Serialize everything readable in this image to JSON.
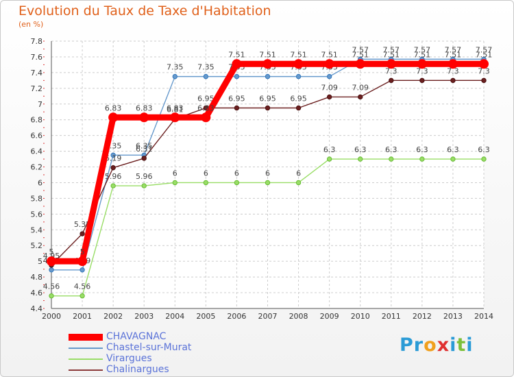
{
  "header": {
    "title": "Evolution du Taux de Taxe d'Habitation",
    "unit": "(en %)"
  },
  "brand": {
    "letters": [
      "P",
      "r",
      "o",
      "x",
      "i",
      "t",
      "i"
    ],
    "colors": [
      "#2a9bd6",
      "#2a9bd6",
      "#f0a01e",
      "#e03030",
      "#2a9bd6",
      "#7cc03a",
      "#2a9bd6"
    ]
  },
  "colors": {
    "CHAVAGNAC": "#ff0000",
    "Chastel-sur-Murat": "#6699cc",
    "Virargues": "#99dd66",
    "Chalinargues": "#8b3a3a"
  },
  "chart_data": {
    "type": "line",
    "title": "Evolution du Taux de Taxe d'Habitation",
    "ylabel": "(en %)",
    "xlabel": "",
    "ylim": [
      4.4,
      7.8
    ],
    "yticks": [
      "4.4",
      "4.6",
      "4.8",
      "5",
      "5.2",
      "5.4",
      "5.6",
      "5.8",
      "6",
      "6.2",
      "6.4",
      "6.6",
      "6.8",
      "7",
      "7.2",
      "7.4",
      "7.6",
      "7.8"
    ],
    "x": [
      "2000",
      "2001",
      "2002",
      "2003",
      "2004",
      "2005",
      "2006",
      "2007",
      "2008",
      "2009",
      "2010",
      "2011",
      "2012",
      "2013",
      "2014"
    ],
    "grid": true,
    "legend": "bottom-left",
    "series": [
      {
        "name": "Chastel-sur-Murat",
        "color": "#6699cc",
        "values": [
          4.89,
          4.89,
          6.35,
          6.35,
          7.35,
          7.35,
          7.35,
          7.35,
          7.35,
          7.35,
          7.57,
          7.57,
          7.57,
          7.57,
          7.57
        ]
      },
      {
        "name": "Virargues",
        "color": "#99dd66",
        "values": [
          4.56,
          4.56,
          5.96,
          5.96,
          6,
          6,
          6,
          6,
          6,
          6.3,
          6.3,
          6.3,
          6.3,
          6.3,
          6.3
        ]
      },
      {
        "name": "Chalinargues",
        "color": "#6b1f1f",
        "values": [
          4.95,
          5.35,
          6.19,
          6.31,
          6.81,
          6.95,
          6.95,
          6.95,
          6.95,
          7.09,
          7.09,
          7.3,
          7.3,
          7.3,
          7.3
        ]
      },
      {
        "name": "CHAVAGNAC",
        "color": "#ff0000",
        "values": [
          5,
          5,
          6.83,
          6.83,
          6.83,
          6.83,
          7.51,
          7.51,
          7.51,
          7.51,
          7.51,
          7.51,
          7.51,
          7.51,
          7.51
        ]
      }
    ],
    "legend_order": [
      "CHAVAGNAC",
      "Chastel-sur-Murat",
      "Virargues",
      "Chalinargues"
    ]
  }
}
